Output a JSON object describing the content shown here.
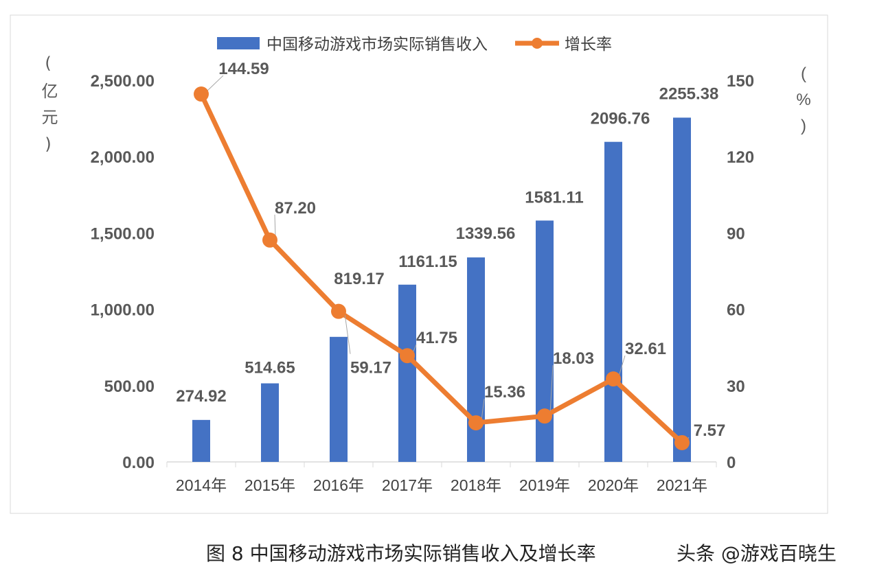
{
  "chart_data": {
    "type": "bar+line",
    "categories": [
      "2014年",
      "2015年",
      "2016年",
      "2017年",
      "2018年",
      "2019年",
      "2020年",
      "2021年"
    ],
    "series": [
      {
        "name": "中国移动游戏市场实际销售收入",
        "type": "bar",
        "axis": "left",
        "color": "#4472C4",
        "values": [
          274.92,
          514.65,
          819.17,
          1161.15,
          1339.56,
          1581.11,
          2096.76,
          2255.38
        ],
        "labels": [
          "274.92",
          "514.65",
          "819.17",
          "1161.15",
          "1339.56",
          "1581.11",
          "2096.76",
          "2255.38"
        ]
      },
      {
        "name": "增长率",
        "type": "line",
        "axis": "right",
        "color": "#ED7D31",
        "values": [
          144.59,
          87.2,
          59.17,
          41.75,
          15.36,
          18.03,
          32.61,
          7.57
        ],
        "labels": [
          "144.59",
          "87.20",
          "59.17",
          "41.75",
          "15.36",
          "18.03",
          "32.61",
          "7.57"
        ]
      }
    ],
    "y_left": {
      "label": "(亿元)",
      "ylim": [
        0,
        2500
      ],
      "ticks": [
        "0.00",
        "500.00",
        "1,000.00",
        "1,500.00",
        "2,000.00",
        "2,500.00"
      ]
    },
    "y_right": {
      "label": "(%)",
      "ylim": [
        0,
        150
      ],
      "ticks": [
        "0",
        "30",
        "60",
        "90",
        "120",
        "150"
      ]
    },
    "legend": "top",
    "grid": false
  },
  "caption": "图 8 中国移动游戏市场实际销售收入及增长率",
  "watermark": "头条 @游戏百晓生"
}
